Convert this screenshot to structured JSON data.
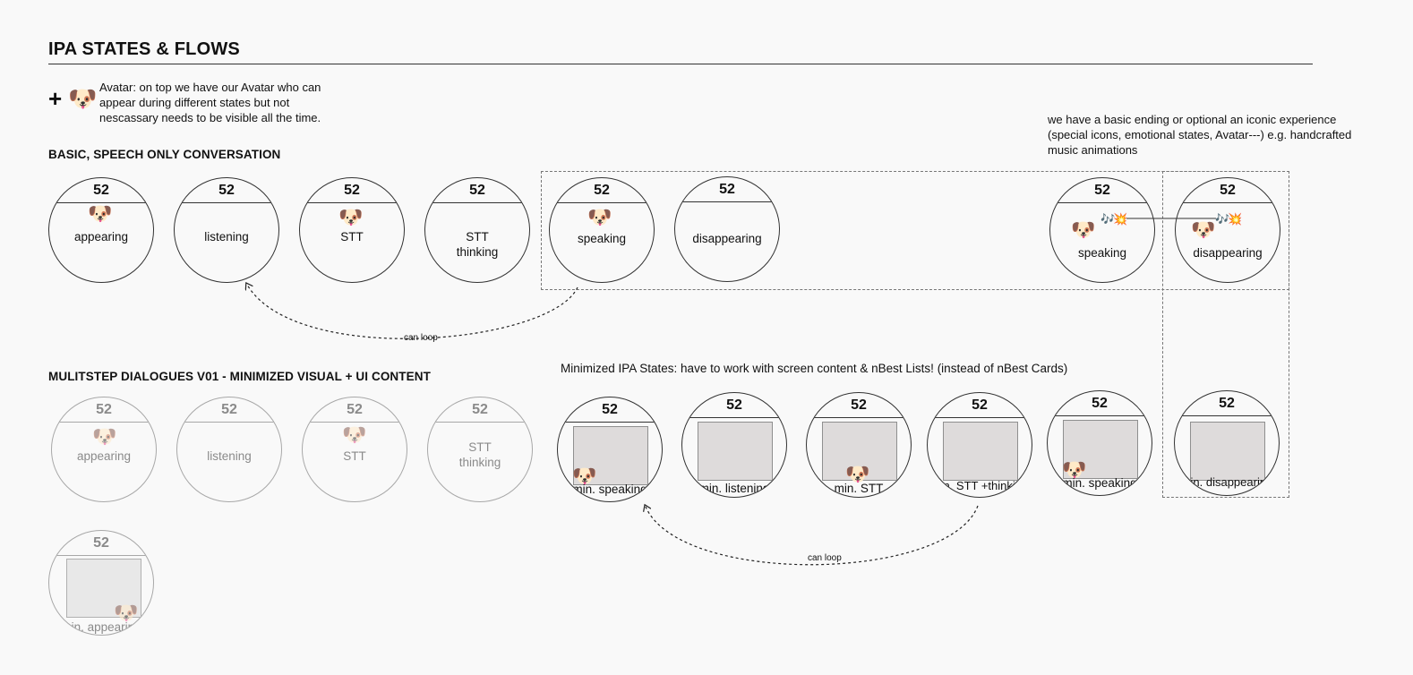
{
  "page": {
    "title": "IPA STATES & FLOWS",
    "plus": "+",
    "avatar_emoji": "🐶",
    "intro": "Avatar: on top we have our Avatar who can appear during different states but not nescassary needs to be visible all the time."
  },
  "sections": {
    "basic": "BASIC, SPEECH ONLY CONVERSATION",
    "multistep": "MULITSTEP DIALOGUES V01 - MINIMIZED VISUAL + UI CONTENT"
  },
  "notes": {
    "iconic": "we have a basic ending or optional an iconic experience (special icons, emotional states, Avatar---) e.g. handcrafted music animations",
    "minimized": "Minimized IPA States: have to work with screen content & nBest Lists! (instead of nBest Cards)"
  },
  "loops": [
    "can loop",
    "can loop"
  ],
  "music_glyphs": "🎶💥",
  "states": [
    {
      "number": "52",
      "label": "appearing",
      "avatar": "🐶"
    },
    {
      "number": "52",
      "label": "listening",
      "avatar": ""
    },
    {
      "number": "52",
      "label": "STT",
      "avatar": "🐶"
    },
    {
      "number": "52",
      "label": "STT\nthinking",
      "avatar": ""
    },
    {
      "number": "52",
      "label": "speaking",
      "avatar": "🐶"
    },
    {
      "number": "52",
      "label": "disappearing",
      "avatar": ""
    },
    {
      "number": "52",
      "label": "speaking",
      "avatar": "🐶"
    },
    {
      "number": "52",
      "label": "disappearing",
      "avatar": "🐶"
    },
    {
      "number": "52",
      "label": "appearing",
      "avatar": "🐶"
    },
    {
      "number": "52",
      "label": "listening",
      "avatar": ""
    },
    {
      "number": "52",
      "label": "STT",
      "avatar": "🐶"
    },
    {
      "number": "52",
      "label": "STT\nthinking",
      "avatar": ""
    },
    {
      "number": "52",
      "label": "min. speaking",
      "avatar": "🐶"
    },
    {
      "number": "52",
      "label": "min. listening",
      "avatar": ""
    },
    {
      "number": "52",
      "label": "min. STT",
      "avatar": "🐶"
    },
    {
      "number": "52",
      "label": "min. STT +thinking",
      "avatar": ""
    },
    {
      "number": "52",
      "label": "min. speaking",
      "avatar": "🐶"
    },
    {
      "number": "52",
      "label": "min. disappearing",
      "avatar": ""
    },
    {
      "number": "52",
      "label": "min. appearing",
      "avatar": "🐶"
    }
  ]
}
